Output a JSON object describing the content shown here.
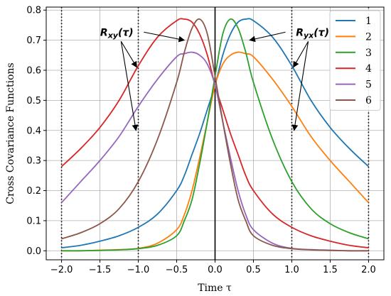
{
  "chart_data": {
    "type": "line",
    "xlabel": "Time τ",
    "ylabel": "Cross Covariance Functions",
    "xlim": [
      -2.2,
      2.2
    ],
    "ylim": [
      -0.03,
      0.81
    ],
    "xticks": [
      -2.0,
      -1.5,
      -1.0,
      -0.5,
      0.0,
      0.5,
      1.0,
      1.5,
      2.0
    ],
    "xtick_labels": [
      "−2.0",
      "−1.5",
      "−1.0",
      "−0.5",
      "0.0",
      "0.5",
      "1.0",
      "1.5",
      "2.0"
    ],
    "yticks": [
      0.0,
      0.1,
      0.2,
      0.3,
      0.4,
      0.5,
      0.6,
      0.7,
      0.8
    ],
    "ytick_labels": [
      "0.0",
      "0.1",
      "0.2",
      "0.3",
      "0.4",
      "0.5",
      "0.6",
      "0.7",
      "0.8"
    ],
    "grid": true,
    "legend_position": "top-right",
    "vertical_lines": [
      {
        "x": -2.0,
        "style": "dotted"
      },
      {
        "x": -1.0,
        "style": "dotted"
      },
      {
        "x": 0.0,
        "style": "solid"
      },
      {
        "x": 1.0,
        "style": "dotted"
      },
      {
        "x": 2.0,
        "style": "dotted"
      }
    ],
    "x": [
      -2.0,
      -1.75,
      -1.5,
      -1.25,
      -1.0,
      -0.75,
      -0.5,
      -0.4,
      -0.3,
      -0.2,
      -0.1,
      0.0,
      0.1,
      0.2,
      0.3,
      0.4,
      0.5,
      0.75,
      1.0,
      1.25,
      1.5,
      1.75,
      2.0
    ],
    "series": [
      {
        "name": "1",
        "color": "#1f77b4",
        "values": [
          0.01,
          0.018,
          0.032,
          0.05,
          0.078,
          0.122,
          0.2,
          0.25,
          0.32,
          0.39,
          0.47,
          0.55,
          0.65,
          0.72,
          0.76,
          0.77,
          0.765,
          0.71,
          0.615,
          0.5,
          0.41,
          0.34,
          0.28
        ]
      },
      {
        "name": "2",
        "color": "#ff7f0e",
        "values": [
          0.0,
          0.0,
          0.002,
          0.004,
          0.008,
          0.025,
          0.07,
          0.12,
          0.2,
          0.31,
          0.43,
          0.55,
          0.62,
          0.65,
          0.66,
          0.655,
          0.645,
          0.57,
          0.48,
          0.38,
          0.3,
          0.23,
          0.16
        ]
      },
      {
        "name": "3",
        "color": "#2ca02c",
        "values": [
          0.0,
          0.0,
          0.001,
          0.003,
          0.007,
          0.018,
          0.05,
          0.1,
          0.17,
          0.29,
          0.43,
          0.58,
          0.72,
          0.77,
          0.74,
          0.66,
          0.56,
          0.37,
          0.23,
          0.14,
          0.09,
          0.06,
          0.04
        ]
      },
      {
        "name": "4",
        "color": "#d62728",
        "values": [
          0.28,
          0.34,
          0.41,
          0.5,
          0.615,
          0.71,
          0.765,
          0.77,
          0.76,
          0.72,
          0.65,
          0.55,
          0.47,
          0.39,
          0.32,
          0.25,
          0.2,
          0.122,
          0.078,
          0.05,
          0.032,
          0.018,
          0.01
        ]
      },
      {
        "name": "5",
        "color": "#9467bd",
        "values": [
          0.16,
          0.23,
          0.3,
          0.38,
          0.48,
          0.57,
          0.645,
          0.655,
          0.66,
          0.65,
          0.62,
          0.55,
          0.43,
          0.31,
          0.2,
          0.12,
          0.07,
          0.025,
          0.008,
          0.004,
          0.002,
          0.0,
          0.0
        ]
      },
      {
        "name": "6",
        "color": "#8c564b",
        "values": [
          0.04,
          0.06,
          0.09,
          0.14,
          0.23,
          0.37,
          0.56,
          0.66,
          0.74,
          0.77,
          0.72,
          0.58,
          0.43,
          0.29,
          0.17,
          0.1,
          0.05,
          0.018,
          0.007,
          0.003,
          0.001,
          0.0,
          0.0
        ]
      }
    ],
    "annotations": [
      {
        "label": "Rxy(τ)",
        "sub": "xy",
        "tau": "(τ)",
        "text_at": [
          -1.28,
          0.715
        ],
        "targets": [
          [
            -0.4,
            0.7
          ],
          [
            -1.02,
            0.61
          ],
          [
            -1.03,
            0.4
          ]
        ]
      },
      {
        "label": "Ryx(τ)",
        "sub": "yx",
        "tau": "(τ)",
        "text_at": [
          1.27,
          0.715
        ],
        "targets": [
          [
            0.45,
            0.7
          ],
          [
            1.02,
            0.61
          ],
          [
            1.03,
            0.4
          ]
        ]
      }
    ]
  }
}
